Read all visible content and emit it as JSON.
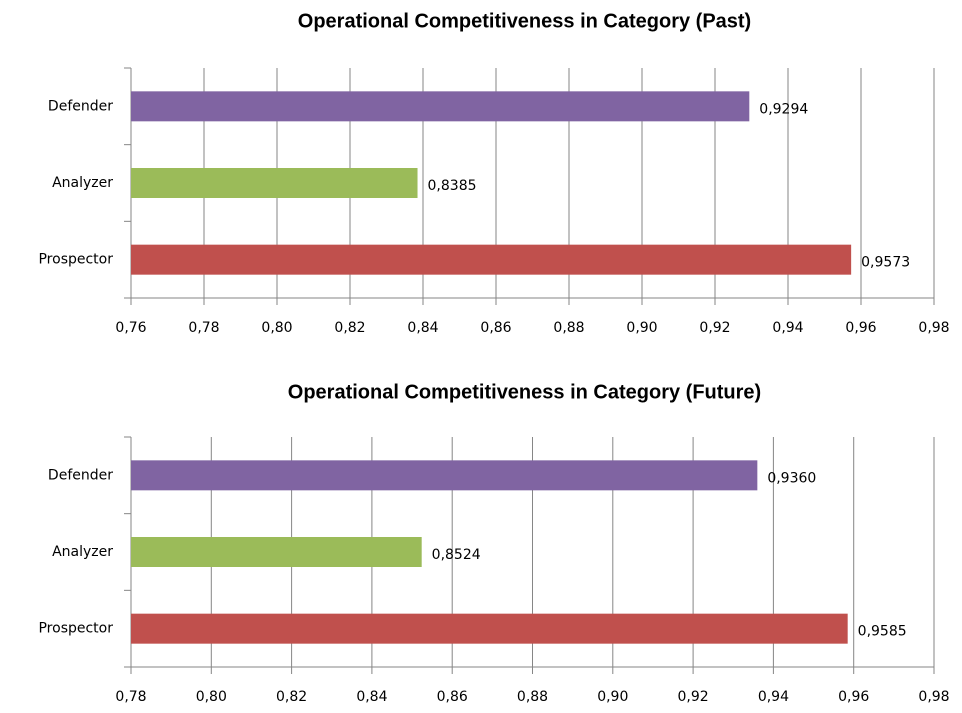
{
  "chart_data": [
    {
      "type": "bar",
      "orientation": "horizontal",
      "title": "Operational Competitiveness in Category (Past)",
      "categories": [
        "Defender",
        "Analyzer",
        "Prospector"
      ],
      "values": [
        0.9294,
        0.8385,
        0.9573
      ],
      "value_labels": [
        "0,9294",
        "0,8385",
        "0,9573"
      ],
      "colors": [
        "#8064a2",
        "#9bbb59",
        "#c0504d"
      ],
      "xlim": [
        0.76,
        0.98
      ],
      "xticks": [
        {
          "value": 0.76,
          "label": "0,76"
        },
        {
          "value": 0.78,
          "label": "0,78"
        },
        {
          "value": 0.8,
          "label": "0,80"
        },
        {
          "value": 0.82,
          "label": "0,82"
        },
        {
          "value": 0.84,
          "label": "0,84"
        },
        {
          "value": 0.86,
          "label": "0,86"
        },
        {
          "value": 0.88,
          "label": "0,88"
        },
        {
          "value": 0.9,
          "label": "0,90"
        },
        {
          "value": 0.92,
          "label": "0,92"
        },
        {
          "value": 0.94,
          "label": "0,94"
        },
        {
          "value": 0.96,
          "label": "0,96"
        },
        {
          "value": 0.98,
          "label": "0,98"
        }
      ],
      "grid": true
    },
    {
      "type": "bar",
      "orientation": "horizontal",
      "title": "Operational Competitiveness in Category (Future)",
      "categories": [
        "Defender",
        "Analyzer",
        "Prospector"
      ],
      "values": [
        0.936,
        0.8524,
        0.9585
      ],
      "value_labels": [
        "0,9360",
        "0,8524",
        "0,9585"
      ],
      "colors": [
        "#8064a2",
        "#9bbb59",
        "#c0504d"
      ],
      "xlim": [
        0.78,
        0.98
      ],
      "xticks": [
        {
          "value": 0.78,
          "label": "0,78"
        },
        {
          "value": 0.8,
          "label": "0,80"
        },
        {
          "value": 0.82,
          "label": "0,82"
        },
        {
          "value": 0.84,
          "label": "0,84"
        },
        {
          "value": 0.86,
          "label": "0,86"
        },
        {
          "value": 0.88,
          "label": "0,88"
        },
        {
          "value": 0.9,
          "label": "0,90"
        },
        {
          "value": 0.92,
          "label": "0,92"
        },
        {
          "value": 0.94,
          "label": "0,94"
        },
        {
          "value": 0.96,
          "label": "0,96"
        },
        {
          "value": 0.98,
          "label": "0,98"
        }
      ],
      "grid": true
    }
  ]
}
